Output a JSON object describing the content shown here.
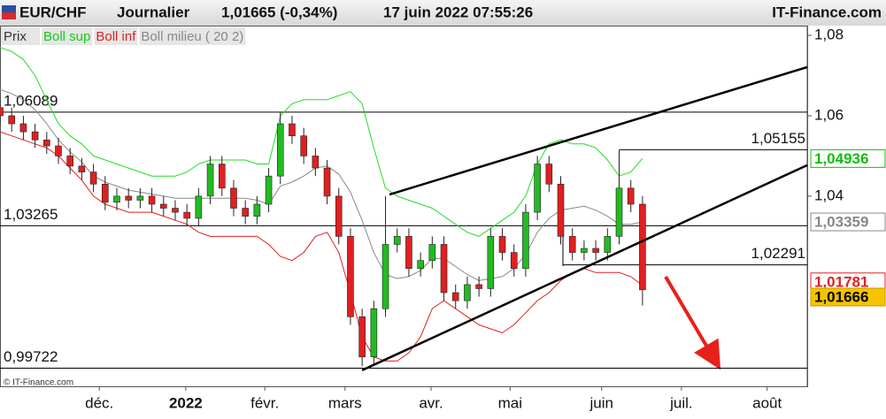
{
  "chart_data": {
    "type": "candlestick",
    "header": {
      "symbol": "EUR/CHF",
      "period": "Journalier",
      "quote": "1,01665 (-0,34%)",
      "datetime": "17 juin 2022 07:55:26",
      "site": "IT-Finance.com"
    },
    "legend_price": "Prix",
    "copyright": "© IT-Finance.com",
    "xlim": [
      0,
      207.3
    ],
    "ylim": [
      0.9927,
      1.0822
    ],
    "xticks": [
      {
        "value": 25.5,
        "label": "déc."
      },
      {
        "value": 47.7,
        "label": "2022"
      },
      {
        "value": 68,
        "label": "févr."
      },
      {
        "value": 88.6,
        "label": "mars"
      },
      {
        "value": 110.7,
        "label": "avr."
      },
      {
        "value": 131,
        "label": "mai"
      },
      {
        "value": 154.5,
        "label": "juin"
      },
      {
        "value": 175,
        "label": "juil."
      },
      {
        "value": 197,
        "label": "août"
      }
    ],
    "yticks": [
      {
        "value": 1.08,
        "label": "1,08"
      },
      {
        "value": 1.06,
        "label": "1,06"
      },
      {
        "value": 1.04,
        "label": "1,04"
      }
    ],
    "x": [
      0,
      3,
      6,
      9,
      12,
      15,
      18,
      21,
      24,
      27,
      30,
      33,
      36,
      39,
      42,
      45,
      48,
      51,
      54,
      57,
      60,
      63,
      66,
      69,
      72,
      75,
      78,
      81,
      84,
      87,
      90,
      93,
      96,
      99,
      102,
      105,
      108,
      111,
      114,
      117,
      120,
      123,
      126,
      129,
      132,
      135,
      138,
      141,
      144,
      147,
      150,
      153,
      156,
      159,
      162,
      165
    ],
    "open": [
      1.062,
      1.06,
      1.058,
      1.056,
      1.054,
      1.0525,
      1.05,
      1.0475,
      1.046,
      1.043,
      1.0385,
      1.04,
      1.039,
      1.04,
      1.038,
      1.037,
      1.036,
      1.0345,
      1.04,
      1.048,
      1.042,
      1.037,
      1.035,
      1.038,
      1.045,
      1.058,
      1.055,
      1.05,
      1.047,
      1.04,
      1.03,
      1.01,
      1.0,
      1.012,
      1.028,
      1.03,
      1.022,
      1.024,
      1.028,
      1.016,
      1.014,
      1.018,
      1.017,
      1.03,
      1.026,
      1.022,
      1.036,
      1.048,
      1.043,
      1.03,
      1.026,
      1.027,
      1.026,
      1.03,
      1.042,
      1.038
    ],
    "high": [
      1.064,
      1.062,
      1.06,
      1.058,
      1.056,
      1.0545,
      1.052,
      1.0495,
      1.048,
      1.045,
      1.042,
      1.042,
      1.042,
      1.042,
      1.04,
      1.039,
      1.038,
      1.042,
      1.05,
      1.05,
      1.044,
      1.039,
      1.04,
      1.047,
      1.061,
      1.06,
      1.057,
      1.052,
      1.049,
      1.042,
      1.032,
      1.012,
      1.014,
      1.04,
      1.032,
      1.032,
      1.026,
      1.03,
      1.03,
      1.018,
      1.02,
      1.02,
      1.032,
      1.032,
      1.028,
      1.038,
      1.05,
      1.05,
      1.045,
      1.032,
      1.029,
      1.029,
      1.032,
      1.0515,
      1.044,
      1.04
    ],
    "low": [
      1.058,
      1.056,
      1.054,
      1.052,
      1.0505,
      1.048,
      1.0455,
      1.044,
      1.041,
      1.0365,
      1.0365,
      1.037,
      1.037,
      1.036,
      1.035,
      1.034,
      1.0325,
      1.0325,
      1.038,
      1.04,
      1.035,
      1.033,
      1.033,
      1.036,
      1.043,
      1.053,
      1.048,
      1.045,
      1.038,
      1.028,
      1.008,
      0.9977,
      0.998,
      1.01,
      1.026,
      1.02,
      1.02,
      1.022,
      1.014,
      1.012,
      1.012,
      1.015,
      1.015,
      1.024,
      1.02,
      1.02,
      1.034,
      1.041,
      1.028,
      1.024,
      1.024,
      1.024,
      1.024,
      1.028,
      1.036,
      1.0128
    ],
    "close": [
      1.06,
      1.058,
      1.056,
      1.054,
      1.0525,
      1.05,
      1.0475,
      1.046,
      1.043,
      1.0385,
      1.04,
      1.039,
      1.04,
      1.038,
      1.037,
      1.036,
      1.0345,
      1.04,
      1.048,
      1.042,
      1.037,
      1.035,
      1.038,
      1.045,
      1.058,
      1.055,
      1.05,
      1.047,
      1.04,
      1.03,
      1.01,
      1.0,
      1.012,
      1.028,
      1.03,
      1.022,
      1.024,
      1.028,
      1.016,
      1.014,
      1.018,
      1.017,
      1.03,
      1.026,
      1.022,
      1.036,
      1.048,
      1.043,
      1.03,
      1.026,
      1.027,
      1.026,
      1.03,
      1.042,
      1.038,
      1.0167
    ],
    "up_color": "#22bb22",
    "down_color": "#e02020",
    "series": [
      {
        "name": "Boll sup",
        "color": "#22dd22",
        "values": [
          1.077,
          1.076,
          1.074,
          1.07,
          1.064,
          1.058,
          1.055,
          1.053,
          1.05,
          1.049,
          1.048,
          1.047,
          1.046,
          1.045,
          1.045,
          1.045,
          1.046,
          1.048,
          1.049,
          1.049,
          1.049,
          1.049,
          1.048,
          1.048,
          1.06,
          1.063,
          1.064,
          1.064,
          1.064,
          1.065,
          1.066,
          1.063,
          1.052,
          1.042,
          1.04,
          1.039,
          1.038,
          1.037,
          1.035,
          1.033,
          1.031,
          1.03,
          1.032,
          1.034,
          1.036,
          1.04,
          1.048,
          1.053,
          1.054,
          1.053,
          1.053,
          1.052,
          1.049,
          1.045,
          1.046,
          1.0494
        ]
      },
      {
        "name": "Boll inf",
        "color": "#e02020",
        "values": [
          1.056,
          1.055,
          1.054,
          1.053,
          1.052,
          1.05,
          1.047,
          1.044,
          1.04,
          1.038,
          1.037,
          1.036,
          1.036,
          1.036,
          1.035,
          1.034,
          1.033,
          1.031,
          1.03,
          1.03,
          1.03,
          1.03,
          1.03,
          1.028,
          1.025,
          1.024,
          1.026,
          1.03,
          1.031,
          1.026,
          1.016,
          1.005,
          1.0,
          0.999,
          0.999,
          1.001,
          1.005,
          1.012,
          1.014,
          1.012,
          1.01,
          1.008,
          1.007,
          1.006,
          1.008,
          1.011,
          1.014,
          1.016,
          1.019,
          1.021,
          1.022,
          1.021,
          1.021,
          1.021,
          1.02,
          1.0178
        ]
      },
      {
        "name": "Boll milieu ( 20 2)",
        "color": "#888888",
        "values": [
          1.0665,
          1.0655,
          1.064,
          1.0615,
          1.058,
          1.054,
          1.051,
          1.0485,
          1.045,
          1.0435,
          1.0425,
          1.0415,
          1.041,
          1.0405,
          1.04,
          1.0395,
          1.0395,
          1.0395,
          1.0395,
          1.0395,
          1.0395,
          1.0395,
          1.039,
          1.038,
          1.0425,
          1.0435,
          1.045,
          1.047,
          1.0475,
          1.0455,
          1.041,
          1.034,
          1.026,
          1.0205,
          1.0195,
          1.02,
          1.0215,
          1.0245,
          1.0245,
          1.0225,
          1.0205,
          1.019,
          1.0195,
          1.02,
          1.022,
          1.0255,
          1.031,
          1.0345,
          1.0365,
          1.037,
          1.0375,
          1.0365,
          1.035,
          1.033,
          1.033,
          1.0336
        ]
      }
    ],
    "levels": [
      {
        "value": 1.06089,
        "label": "1,06089",
        "from": 0
      },
      {
        "value": 1.03265,
        "label": "1,03265",
        "from": 0
      },
      {
        "value": 0.99722,
        "label": "0,99722",
        "from": 0
      },
      {
        "value": 1.05155,
        "label": "1,05155",
        "from": 159
      },
      {
        "value": 1.02291,
        "label": "1,02291",
        "from": 144.5
      }
    ],
    "trendlines": [
      {
        "x": [
          100,
          207.3
        ],
        "y": [
          1.0404,
          1.0721
        ]
      },
      {
        "x": [
          93,
          207.3
        ],
        "y": [
          0.9967,
          1.0477
        ]
      }
    ],
    "price_tags": [
      {
        "value": 1.04936,
        "label": "1,04936",
        "color": "#11bb11",
        "background": "#ffffff"
      },
      {
        "value": 1.03359,
        "label": "1,03359",
        "color": "#888888",
        "background": "#ffffff"
      },
      {
        "value": 1.01781,
        "label": "1,01781",
        "color": "#e02020",
        "background": "#ffffff"
      },
      {
        "value": 1.01666,
        "label": "1,01666",
        "color": "#000000",
        "background": "#f5c400"
      }
    ]
  }
}
